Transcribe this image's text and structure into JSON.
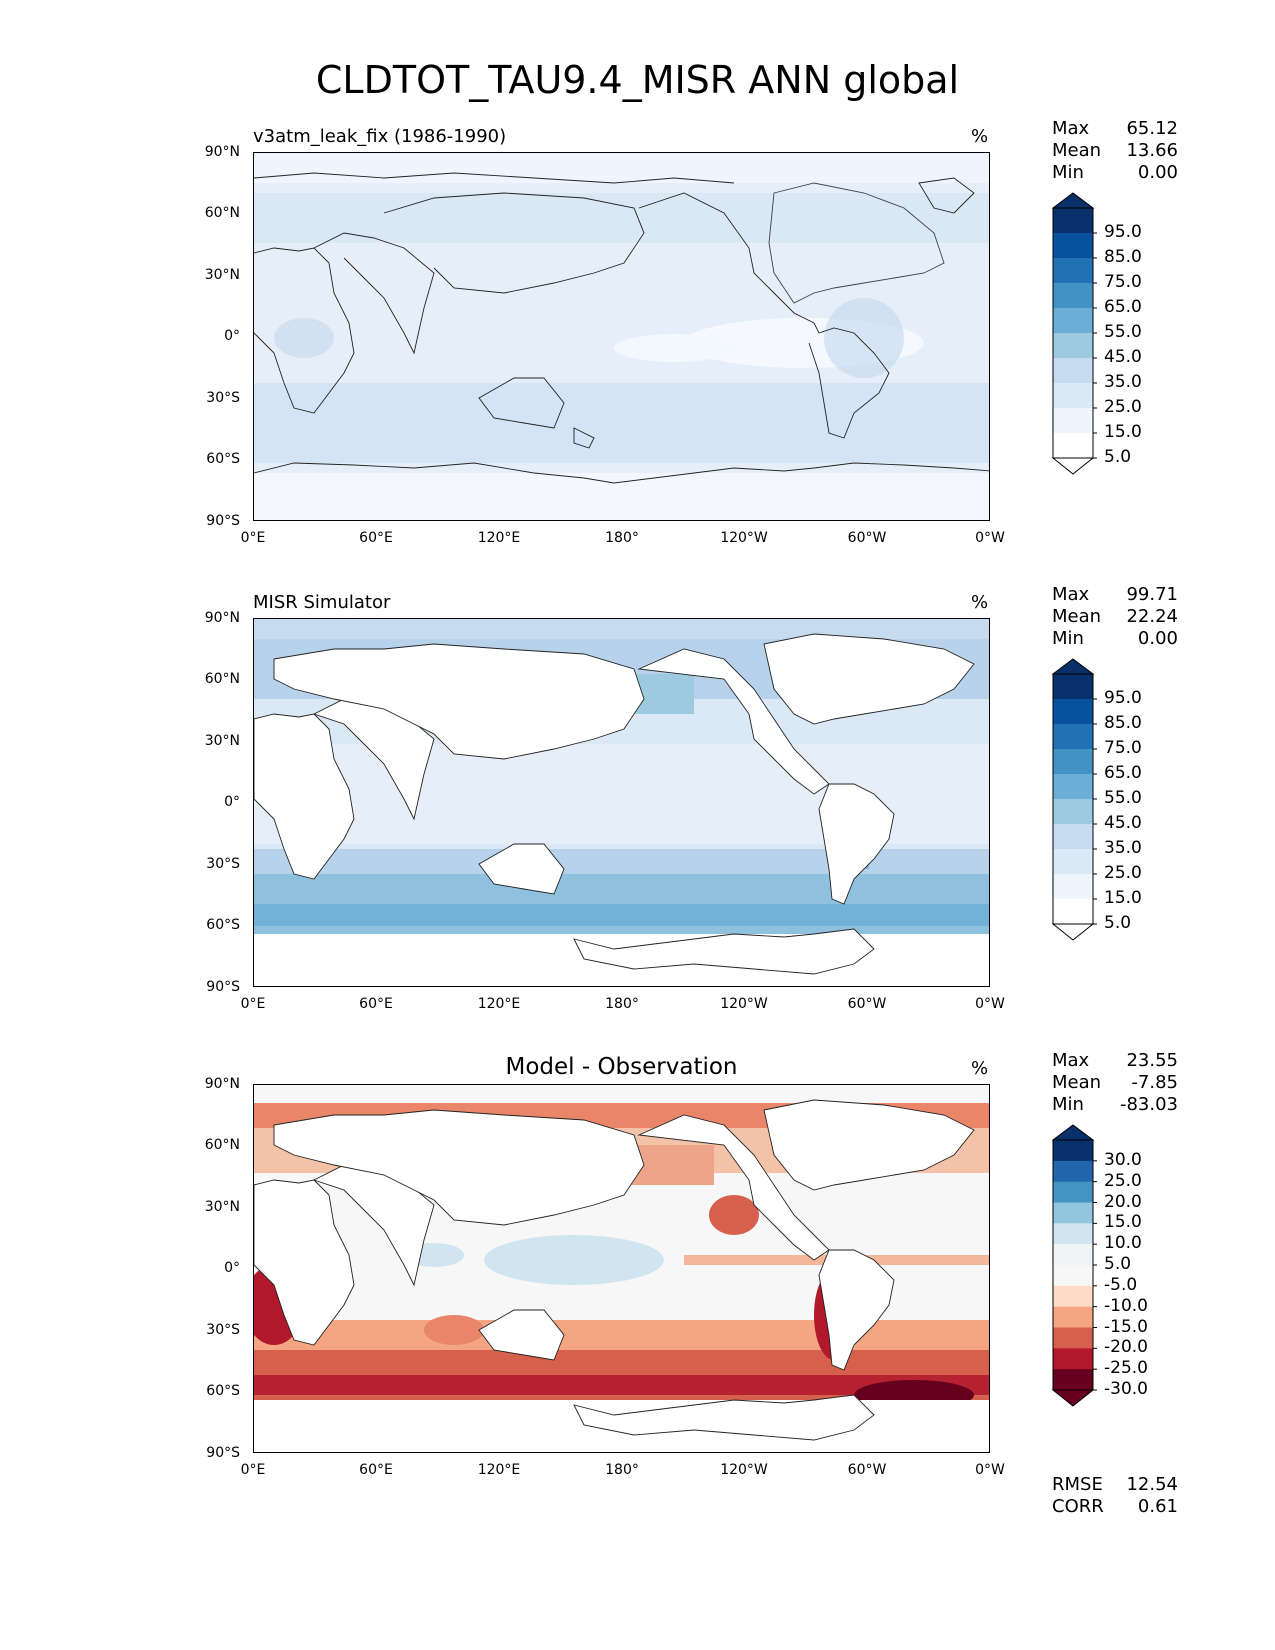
{
  "title": "CLDTOT_TAU9.4_MISR ANN global",
  "lat_labels": [
    "90°N",
    "60°N",
    "30°N",
    "0°",
    "30°S",
    "60°S",
    "90°S"
  ],
  "lon_labels": [
    "0°E",
    "60°E",
    "120°E",
    "180°",
    "120°W",
    "60°W",
    "0°W"
  ],
  "panels": [
    {
      "title": "v3atm_leak_fix (1986-1990)",
      "units": "%",
      "stats": {
        "max_label": "Max",
        "max": "65.12",
        "mean_label": "Mean",
        "mean": "13.66",
        "min_label": "Min",
        "min": "0.00"
      },
      "colorbar": {
        "labels": [
          "95.0",
          "85.0",
          "75.0",
          "65.0",
          "55.0",
          "45.0",
          "35.0",
          "25.0",
          "15.0",
          "5.0"
        ],
        "colors": [
          "#08306b",
          "#08519c",
          "#2171b5",
          "#4292c6",
          "#6baed6",
          "#9ecae1",
          "#c6dbef",
          "#dbe9f6",
          "#eef5fc",
          "#ffffff"
        ],
        "top_extend": "#08306b",
        "bottom_extend": "#ffffff"
      }
    },
    {
      "title": "MISR Simulator",
      "units": "%",
      "stats": {
        "max_label": "Max",
        "max": "99.71",
        "mean_label": "Mean",
        "mean": "22.24",
        "min_label": "Min",
        "min": "0.00"
      },
      "colorbar": {
        "labels": [
          "95.0",
          "85.0",
          "75.0",
          "65.0",
          "55.0",
          "45.0",
          "35.0",
          "25.0",
          "15.0",
          "5.0"
        ],
        "colors": [
          "#08306b",
          "#08519c",
          "#2171b5",
          "#4292c6",
          "#6baed6",
          "#9ecae1",
          "#c6dbef",
          "#dbe9f6",
          "#eef5fc",
          "#ffffff"
        ],
        "top_extend": "#08306b",
        "bottom_extend": "#ffffff"
      }
    },
    {
      "title": "Model - Observation",
      "units": "%",
      "stats": {
        "max_label": "Max",
        "max": "23.55",
        "mean_label": "Mean",
        "mean": "-7.85",
        "min_label": "Min",
        "min": "-83.03"
      },
      "rmse_label": "RMSE",
      "rmse": "12.54",
      "corr_label": "CORR",
      "corr": "0.61",
      "colorbar": {
        "labels": [
          "30.0",
          "25.0",
          "20.0",
          "15.0",
          "10.0",
          "5.0",
          "-5.0",
          "-10.0",
          "-15.0",
          "-20.0",
          "-25.0",
          "-30.0"
        ],
        "colors": [
          "#08306b",
          "#2166ac",
          "#4393c3",
          "#92c5de",
          "#d1e5f0",
          "#f0f4f7",
          "#f7f7f7",
          "#fddbc7",
          "#f4a582",
          "#d6604d",
          "#b2182b",
          "#67001f"
        ],
        "top_extend": "#08306b",
        "bottom_extend": "#67001f"
      }
    }
  ]
}
